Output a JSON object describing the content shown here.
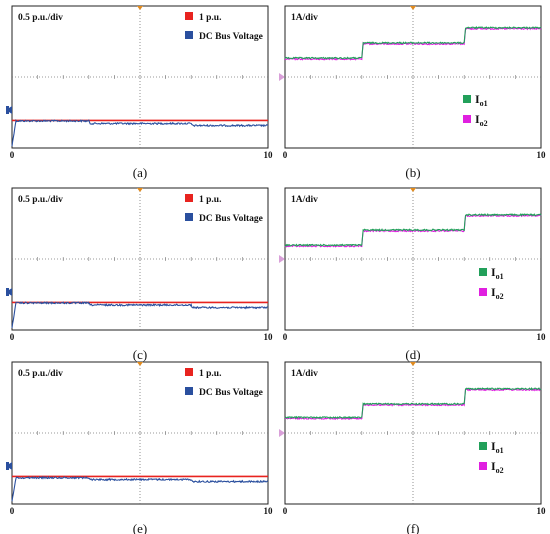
{
  "figure": {
    "panels": [
      {
        "label": "(a)",
        "scale_text": "0.5 p.u./div",
        "x_start": "0",
        "x_end": "10",
        "legend": [
          {
            "text": "1 p.u.",
            "color": "#e8231f"
          },
          {
            "text": "DC Bus Voltage",
            "color": "#2a4f9e"
          }
        ]
      },
      {
        "label": "(b)",
        "scale_text": "1A/div",
        "x_start": "0",
        "x_end": "10",
        "legend": [
          {
            "main": "I",
            "sub": "o1",
            "color": "#22a05a"
          },
          {
            "main": "I",
            "sub": "o2",
            "color": "#e020e0"
          }
        ]
      },
      {
        "label": "(c)",
        "scale_text": "0.5 p.u./div",
        "x_start": "0",
        "x_end": "10",
        "legend": [
          {
            "text": "1 p.u.",
            "color": "#e8231f"
          },
          {
            "text": "DC Bus Voltage",
            "color": "#2a4f9e"
          }
        ]
      },
      {
        "label": "(d)",
        "scale_text": "1A/div",
        "x_start": "0",
        "x_end": "10",
        "legend": [
          {
            "main": "I",
            "sub": "o1",
            "color": "#22a05a"
          },
          {
            "main": "I",
            "sub": "o2",
            "color": "#e020e0"
          }
        ]
      },
      {
        "label": "(e)",
        "scale_text": "0.5 p.u./div",
        "x_start": "0",
        "x_end": "10",
        "legend": [
          {
            "text": "1 p.u.",
            "color": "#e8231f"
          },
          {
            "text": "DC Bus Voltage",
            "color": "#2a4f9e"
          }
        ]
      },
      {
        "label": "(f)",
        "scale_text": "1A/div",
        "x_start": "0",
        "x_end": "10",
        "legend": [
          {
            "main": "I",
            "sub": "o1",
            "color": "#22a05a"
          },
          {
            "main": "I",
            "sub": "o2",
            "color": "#e020e0"
          }
        ]
      }
    ]
  },
  "chart_data": [
    {
      "type": "line",
      "panel": "(a)",
      "xlim": [
        0,
        10
      ],
      "series": [
        {
          "name": "1 p.u.",
          "color": "#e8231f",
          "x": [
            0,
            10
          ],
          "y": [
            1.0,
            1.0
          ]
        },
        {
          "name": "DC Bus Voltage",
          "color": "#2a4f9e",
          "x": [
            0,
            0.15,
            0.3,
            3.0,
            3.05,
            7.0,
            7.05,
            10
          ],
          "y": [
            0,
            0.98,
            0.98,
            0.98,
            0.88,
            0.88,
            0.8,
            0.8
          ]
        }
      ]
    },
    {
      "type": "line",
      "panel": "(b)",
      "xlim": [
        0,
        10
      ],
      "series": [
        {
          "name": "Io1",
          "color": "#22a05a",
          "x": [
            0,
            3.0,
            3.05,
            7.0,
            7.05,
            10
          ],
          "y": [
            1.1,
            1.1,
            2.0,
            2.0,
            2.9,
            2.9
          ]
        },
        {
          "name": "Io2",
          "color": "#e020e0",
          "x": [
            0,
            3.0,
            3.05,
            7.0,
            7.05,
            10
          ],
          "y": [
            1.1,
            1.1,
            2.0,
            2.0,
            2.9,
            2.9
          ]
        }
      ]
    },
    {
      "type": "line",
      "panel": "(c)",
      "xlim": [
        0,
        10
      ],
      "series": [
        {
          "name": "1 p.u.",
          "color": "#e8231f",
          "x": [
            0,
            10
          ],
          "y": [
            1.0,
            1.0
          ]
        },
        {
          "name": "DC Bus Voltage",
          "color": "#2a4f9e",
          "x": [
            0,
            0.15,
            0.3,
            3.0,
            3.05,
            7.0,
            7.05,
            10
          ],
          "y": [
            0,
            0.98,
            0.98,
            0.98,
            0.9,
            0.9,
            0.8,
            0.8
          ]
        }
      ]
    },
    {
      "type": "line",
      "panel": "(d)",
      "xlim": [
        0,
        10
      ],
      "series": [
        {
          "name": "Io1",
          "color": "#22a05a",
          "x": [
            0,
            3.0,
            3.05,
            7.0,
            7.05,
            10
          ],
          "y": [
            0.8,
            0.8,
            1.7,
            1.7,
            2.6,
            2.6
          ]
        },
        {
          "name": "Io2",
          "color": "#e020e0",
          "x": [
            0,
            3.0,
            3.05,
            7.0,
            7.05,
            10
          ],
          "y": [
            0.8,
            0.8,
            1.7,
            1.7,
            2.6,
            2.6
          ]
        }
      ]
    },
    {
      "type": "line",
      "panel": "(e)",
      "xlim": [
        0,
        10
      ],
      "series": [
        {
          "name": "1 p.u.",
          "color": "#e8231f",
          "x": [
            0,
            10
          ],
          "y": [
            1.0,
            1.0
          ]
        },
        {
          "name": "DC Bus Voltage",
          "color": "#2a4f9e",
          "x": [
            0,
            0.15,
            0.3,
            3.0,
            3.05,
            7.0,
            7.05,
            10
          ],
          "y": [
            0,
            0.95,
            0.95,
            0.95,
            0.88,
            0.88,
            0.8,
            0.8
          ]
        }
      ]
    },
    {
      "type": "line",
      "panel": "(f)",
      "xlim": [
        0,
        10
      ],
      "series": [
        {
          "name": "Io1",
          "color": "#22a05a",
          "x": [
            0,
            3.0,
            3.05,
            7.0,
            7.05,
            10
          ],
          "y": [
            0.9,
            0.9,
            1.7,
            1.7,
            2.6,
            2.6
          ]
        },
        {
          "name": "Io2",
          "color": "#e020e0",
          "x": [
            0,
            3.0,
            3.05,
            7.0,
            7.05,
            10
          ],
          "y": [
            0.9,
            0.9,
            1.7,
            1.7,
            2.6,
            2.6
          ]
        }
      ]
    }
  ]
}
